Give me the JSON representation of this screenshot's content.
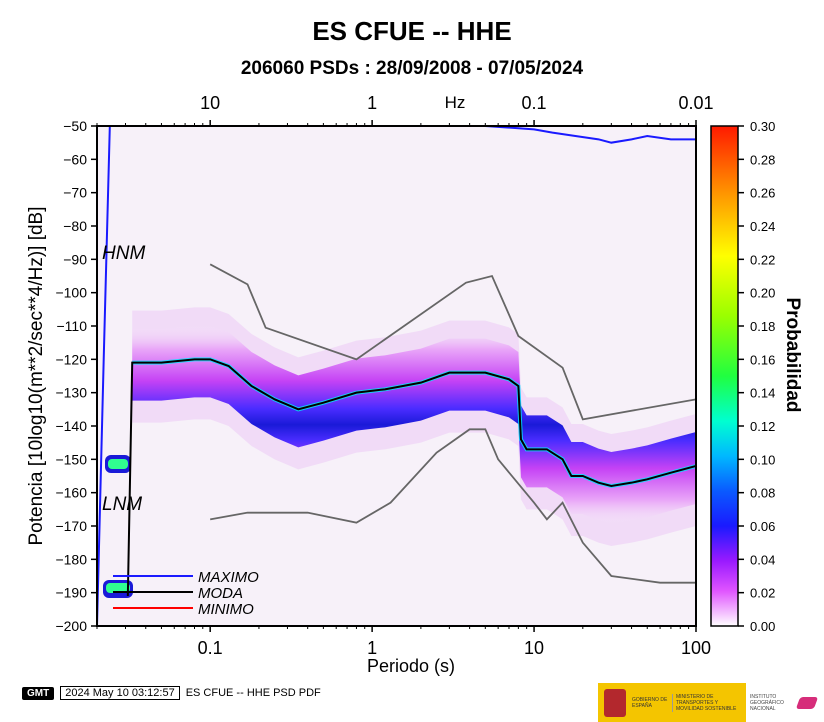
{
  "header": {
    "title": "ES CFUE -- HHE",
    "subtitle": "206060 PSDs : 28/09/2008 - 07/05/2024"
  },
  "chart_data": {
    "type": "heatmap",
    "title": "ES CFUE -- HHE",
    "subtitle": "206060 PSDs : 28/09/2008 - 07/05/2024",
    "xlabel": "Periodo (s)",
    "ylabel": "Potencia [10log10(m**2/sec**4/Hz)] [dB]",
    "top_axis_label": "Hz",
    "xscale": "log",
    "xlim": [
      0.02,
      100
    ],
    "ylim": [
      -200,
      -50
    ],
    "x_ticks": [
      {
        "v": 0.1,
        "label": "0.1"
      },
      {
        "v": 1,
        "label": "1"
      },
      {
        "v": 10,
        "label": "10"
      },
      {
        "v": 100,
        "label": "100"
      }
    ],
    "top_ticks": [
      {
        "v": 0.1,
        "label": "10"
      },
      {
        "v": 1,
        "label": "1"
      },
      {
        "v": 10,
        "label": "0.1"
      },
      {
        "v": 100,
        "label": "0.01"
      }
    ],
    "y_ticks": [
      -50,
      -60,
      -70,
      -80,
      -90,
      -100,
      -110,
      -120,
      -130,
      -140,
      -150,
      -160,
      -170,
      -180,
      -190,
      -200
    ],
    "colorbar": {
      "label": "Probabilidad",
      "range": [
        0,
        0.3
      ],
      "ticks": [
        "0.30",
        "0.28",
        "0.26",
        "0.24",
        "0.22",
        "0.20",
        "0.18",
        "0.16",
        "0.14",
        "0.12",
        "0.10",
        "0.08",
        "0.06",
        "0.04",
        "0.02",
        "0.00"
      ]
    },
    "noise_model_labels": {
      "hnm": "HNM",
      "lnm": "LNM"
    },
    "legend": [
      {
        "name": "MAXIMO",
        "color": "#1a1aff"
      },
      {
        "name": "MODA",
        "color": "#000000"
      },
      {
        "name": "MINIMO",
        "color": "#ff0000"
      }
    ],
    "series": [
      {
        "name": "MAXIMO",
        "x": [
          0.02,
          0.022,
          0.024,
          0.03,
          0.05,
          0.08,
          0.15,
          0.3,
          0.6,
          1,
          2,
          5,
          10,
          13,
          18,
          25,
          30,
          40,
          50,
          70,
          100
        ],
        "y": [
          -200,
          -120,
          -50,
          -50,
          -50,
          -50,
          -50,
          -50,
          -50,
          -50,
          -50,
          -50,
          -51,
          -52,
          -53,
          -54,
          -55,
          -54,
          -53,
          -54,
          -54
        ]
      },
      {
        "name": "MODA",
        "x": [
          0.031,
          0.033,
          0.05,
          0.08,
          0.1,
          0.13,
          0.18,
          0.25,
          0.35,
          0.5,
          0.8,
          1.2,
          2,
          3,
          5,
          7,
          8,
          8.3,
          9,
          12,
          15,
          17,
          20,
          25,
          30,
          40,
          50,
          70,
          100
        ],
        "y": [
          -191,
          -121,
          -121,
          -120,
          -120,
          -122,
          -128,
          -132,
          -135,
          -133,
          -130,
          -129,
          -127,
          -124,
          -124,
          -126,
          -128,
          -144,
          -147,
          -147,
          -150,
          -155,
          -155,
          -157,
          -158,
          -157,
          -156,
          -154,
          -152
        ]
      },
      {
        "name": "MINIMO",
        "x": [
          0.02,
          100
        ],
        "y": [
          -200,
          -200
        ]
      },
      {
        "name": "HNM",
        "x": [
          0.1,
          0.17,
          0.22,
          0.8,
          3.8,
          5.5,
          8,
          15,
          20,
          100
        ],
        "y": [
          -91.5,
          -97.5,
          -110.5,
          -120,
          -97,
          -95,
          -113,
          -122.5,
          -138,
          -132
        ]
      },
      {
        "name": "LNM",
        "x": [
          0.1,
          0.17,
          0.4,
          0.8,
          1.3,
          2.5,
          4,
          5,
          6,
          10,
          12,
          15,
          20,
          30,
          60,
          100
        ],
        "y": [
          -168,
          -166,
          -166,
          -169,
          -163,
          -148,
          -141,
          -141,
          -150,
          -163,
          -168,
          -163,
          -175,
          -185,
          -187,
          -187
        ]
      }
    ]
  },
  "footer": {
    "gmt": "GMT",
    "stamp": "2024 May 10 03:12:57",
    "caption": "ES CFUE -- HHE PSD PDF",
    "gov_org": "GOBIERNO DE ESPAÑA",
    "ministry": "MINISTERIO DE TRANSPORTES Y MOVILIDAD SOSTENIBLE",
    "institute": "INSTITUTO GEOGRÁFICO NACIONAL"
  }
}
